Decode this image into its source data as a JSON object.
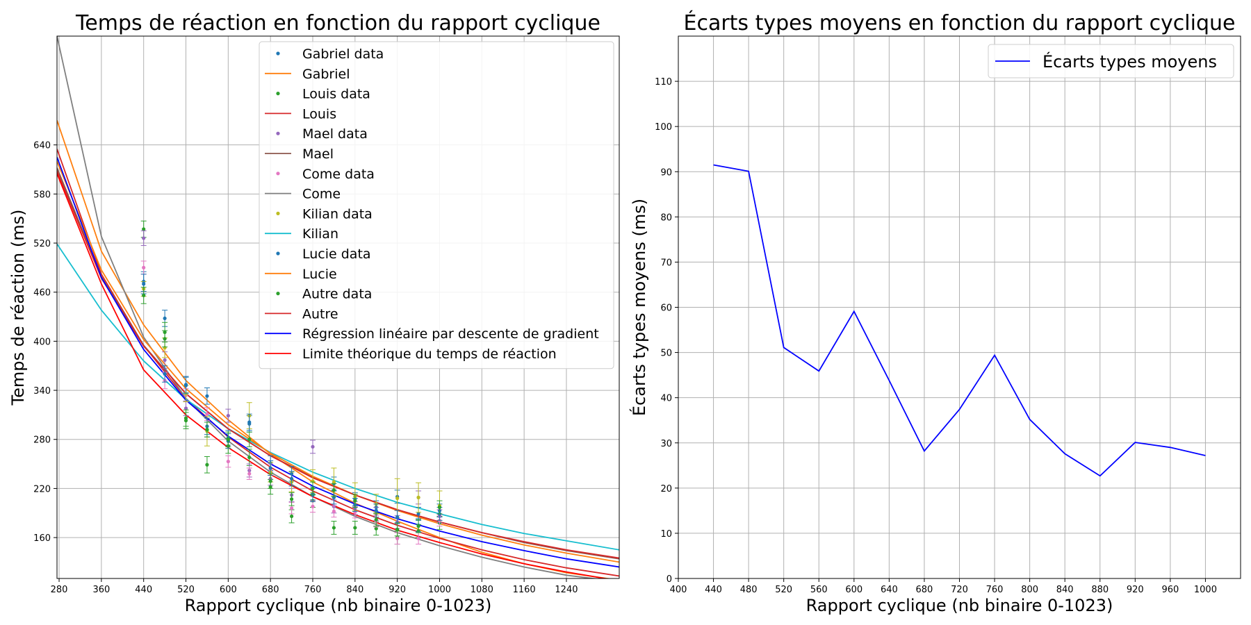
{
  "chart_data": [
    {
      "type": "scatter",
      "title": "Temps de réaction en fonction du rapport cyclique",
      "xlabel": "Rapport cyclique (nb binaire 0-1023)",
      "ylabel": "Temps de réaction (ms)",
      "xlim": [
        276,
        1340
      ],
      "ylim": [
        110,
        773
      ],
      "xticks": [
        280,
        360,
        440,
        520,
        600,
        680,
        760,
        840,
        920,
        1000,
        1080,
        1160,
        1240
      ],
      "yticks": [
        160,
        220,
        280,
        340,
        400,
        460,
        520,
        580,
        640
      ],
      "grid": true,
      "legend_position": "top-right",
      "x": [
        440,
        480,
        520,
        560,
        600,
        640,
        680,
        720,
        760,
        800,
        840,
        880,
        920,
        960,
        1000
      ],
      "series": [
        {
          "name": "Gabriel data",
          "kind": "errorbar",
          "color": "#1f77b4",
          "y": [
            473,
            428,
            347,
            333,
            282,
            299,
            251,
            238,
            214,
            226,
            207,
            197,
            210,
            189,
            193
          ],
          "err": [
            12,
            10,
            10,
            10,
            9,
            10,
            9,
            9,
            8,
            8,
            8,
            8,
            8,
            8,
            8
          ]
        },
        {
          "name": "Gabriel",
          "kind": "line",
          "color": "#ff7f0e",
          "points": [
            [
              276,
              670
            ],
            [
              360,
              510
            ],
            [
              440,
              420
            ],
            [
              520,
              352
            ],
            [
              600,
              304
            ],
            [
              680,
              262
            ],
            [
              760,
              228
            ],
            [
              840,
              202
            ],
            [
              920,
              180
            ],
            [
              1000,
              160
            ],
            [
              1080,
              142
            ],
            [
              1160,
              128
            ],
            [
              1240,
              117
            ],
            [
              1340,
              108
            ]
          ]
        },
        {
          "name": "Louis data",
          "kind": "errorbar",
          "color": "#2ca02c",
          "y": [
            537,
            411,
            303,
            249,
            272,
            258,
            222,
            186,
            205,
            172,
            172,
            171,
            160,
            168,
            178
          ],
          "err": [
            10,
            12,
            10,
            10,
            9,
            10,
            9,
            8,
            8,
            8,
            8,
            8,
            8,
            8,
            8
          ]
        },
        {
          "name": "Louis",
          "kind": "line",
          "color": "#d62728",
          "points": [
            [
              276,
              635
            ],
            [
              360,
              482
            ],
            [
              440,
              395
            ],
            [
              520,
              330
            ],
            [
              600,
              283
            ],
            [
              680,
              246
            ],
            [
              760,
              217
            ],
            [
              840,
              194
            ],
            [
              920,
              175
            ],
            [
              1000,
              159
            ],
            [
              1080,
              145
            ],
            [
              1160,
              133
            ],
            [
              1240,
              123
            ],
            [
              1340,
              113
            ]
          ]
        },
        {
          "name": "Mael data",
          "kind": "errorbar",
          "color": "#9467bd",
          "y": [
            526,
            377,
            318,
            292,
            309,
            242,
            232,
            212,
            271,
            198,
            196,
            189,
            179,
            209,
            186
          ],
          "err": [
            9,
            10,
            9,
            9,
            8,
            8,
            8,
            8,
            8,
            8,
            8,
            8,
            8,
            8,
            8
          ]
        },
        {
          "name": "Mael",
          "kind": "line",
          "color": "#8c564b",
          "points": [
            [
              276,
              612
            ],
            [
              360,
              479
            ],
            [
              440,
              395
            ],
            [
              520,
              336
            ],
            [
              600,
              293
            ],
            [
              680,
              260
            ],
            [
              760,
              234
            ],
            [
              840,
              212
            ],
            [
              920,
              194
            ],
            [
              1000,
              179
            ],
            [
              1080,
              166
            ],
            [
              1160,
              154
            ],
            [
              1240,
              144
            ],
            [
              1340,
              134
            ]
          ]
        },
        {
          "name": "Come data",
          "kind": "errorbar",
          "color": "#e377c2",
          "y": [
            490,
            352,
            334,
            311,
            253,
            238,
            243,
            196,
            198,
            192,
            191,
            180,
            159,
            159,
            181
          ],
          "err": [
            8,
            10,
            8,
            8,
            7,
            7,
            7,
            7,
            7,
            7,
            7,
            7,
            7,
            7,
            7
          ]
        },
        {
          "name": "Come",
          "kind": "line",
          "color": "#7f7f7f",
          "points": [
            [
              276,
              773
            ],
            [
              360,
              528
            ],
            [
              440,
              405
            ],
            [
              520,
              330
            ],
            [
              600,
              278
            ],
            [
              680,
              240
            ],
            [
              760,
              210
            ],
            [
              840,
              186
            ],
            [
              920,
              166
            ],
            [
              1000,
              150
            ],
            [
              1080,
              136
            ],
            [
              1160,
              124
            ],
            [
              1240,
              114
            ],
            [
              1340,
              106
            ]
          ]
        },
        {
          "name": "Kilian data",
          "kind": "errorbar",
          "color": "#bcbd22",
          "y": [
            464,
            392,
            336,
            290,
            278,
            309,
            240,
            228,
            229,
            228,
            210,
            201,
            208,
            209,
            199
          ],
          "err": [
            9,
            12,
            10,
            18,
            9,
            16,
            12,
            12,
            14,
            17,
            17,
            12,
            24,
            18,
            18
          ]
        },
        {
          "name": "Kilian",
          "kind": "line",
          "color": "#17becf",
          "points": [
            [
              276,
              519
            ],
            [
              360,
              438
            ],
            [
              440,
              376
            ],
            [
              520,
              329
            ],
            [
              600,
              293
            ],
            [
              680,
              264
            ],
            [
              760,
              240
            ],
            [
              840,
              220
            ],
            [
              920,
              203
            ],
            [
              1000,
              189
            ],
            [
              1080,
              176
            ],
            [
              1160,
              165
            ],
            [
              1240,
              156
            ],
            [
              1340,
              145
            ]
          ]
        },
        {
          "name": "Lucie data",
          "kind": "errorbar",
          "color": "#1f77b4",
          "y": [
            470,
            360,
            346,
            296,
            278,
            301,
            245,
            232,
            212,
            209,
            200,
            193,
            185,
            175,
            189
          ],
          "err": [
            12,
            10,
            10,
            10,
            9,
            10,
            9,
            9,
            8,
            8,
            8,
            8,
            8,
            8,
            8
          ]
        },
        {
          "name": "Lucie",
          "kind": "line",
          "color": "#ff7f0e",
          "points": [
            [
              276,
              620
            ],
            [
              360,
              487
            ],
            [
              440,
              402
            ],
            [
              520,
              342
            ],
            [
              600,
              298
            ],
            [
              680,
              263
            ],
            [
              760,
              235
            ],
            [
              840,
              212
            ],
            [
              920,
              193
            ],
            [
              1000,
              177
            ],
            [
              1080,
              163
            ],
            [
              1160,
              151
            ],
            [
              1240,
              141
            ],
            [
              1340,
              130
            ]
          ]
        },
        {
          "name": "Autre data",
          "kind": "errorbar",
          "color": "#2ca02c",
          "y": [
            456,
            403,
            306,
            292,
            280,
            280,
            229,
            207,
            220,
            218,
            205,
            182,
            170,
            174,
            197
          ],
          "err": [
            10,
            10,
            10,
            9,
            9,
            9,
            9,
            8,
            8,
            8,
            8,
            8,
            8,
            8,
            8
          ]
        },
        {
          "name": "Autre",
          "kind": "line",
          "color": "#d62728",
          "points": [
            [
              276,
              608
            ],
            [
              360,
              477
            ],
            [
              440,
              394
            ],
            [
              520,
              336
            ],
            [
              600,
              293
            ],
            [
              680,
              260
            ],
            [
              760,
              233
            ],
            [
              840,
              212
            ],
            [
              920,
              194
            ],
            [
              1000,
              179
            ],
            [
              1080,
              166
            ],
            [
              1160,
              155
            ],
            [
              1240,
              145
            ],
            [
              1340,
              135
            ]
          ]
        },
        {
          "name": "Régression linéaire par descente de gradient",
          "kind": "line",
          "color": "#0000ff",
          "points": [
            [
              276,
              625
            ],
            [
              360,
              478
            ],
            [
              440,
              390
            ],
            [
              520,
              328
            ],
            [
              600,
              284
            ],
            [
              680,
              250
            ],
            [
              760,
              223
            ],
            [
              840,
              201
            ],
            [
              920,
              183
            ],
            [
              1000,
              168
            ],
            [
              1080,
              155
            ],
            [
              1160,
              144
            ],
            [
              1240,
              134
            ],
            [
              1340,
              124
            ]
          ]
        },
        {
          "name": "Limite théorique du temps de réaction",
          "kind": "line",
          "color": "#ff0000",
          "points": [
            [
              276,
              605
            ],
            [
              360,
              470
            ],
            [
              440,
              365
            ],
            [
              520,
              310
            ],
            [
              600,
              270
            ],
            [
              680,
              237
            ],
            [
              760,
              210
            ],
            [
              840,
              188
            ],
            [
              920,
              169
            ],
            [
              1000,
              154
            ],
            [
              1080,
              140
            ],
            [
              1160,
              128
            ],
            [
              1240,
              118
            ],
            [
              1340,
              107
            ]
          ]
        }
      ]
    },
    {
      "type": "line",
      "title": "Écarts types moyens en fonction du rapport cyclique",
      "xlabel": "Rapport cyclique (nb binaire 0-1023)",
      "ylabel": "Écarts types moyens (ms)",
      "xlim": [
        400,
        1040
      ],
      "ylim": [
        0,
        120
      ],
      "xticks": [
        400,
        440,
        480,
        520,
        560,
        600,
        640,
        680,
        720,
        760,
        800,
        840,
        880,
        920,
        960,
        1000
      ],
      "yticks": [
        0,
        10,
        20,
        30,
        40,
        50,
        60,
        70,
        80,
        90,
        100,
        110
      ],
      "grid": true,
      "legend_position": "top-right",
      "x": [
        440,
        480,
        520,
        560,
        600,
        640,
        680,
        720,
        760,
        800,
        840,
        880,
        920,
        960,
        1000
      ],
      "series": [
        {
          "name": "Écarts types moyens",
          "color": "#0000ff",
          "values": [
            91.5,
            90.1,
            51.1,
            45.9,
            59.1,
            43.8,
            28.2,
            37.4,
            49.4,
            35.2,
            27.6,
            22.7,
            30.1,
            29.0,
            27.2
          ]
        }
      ]
    }
  ]
}
